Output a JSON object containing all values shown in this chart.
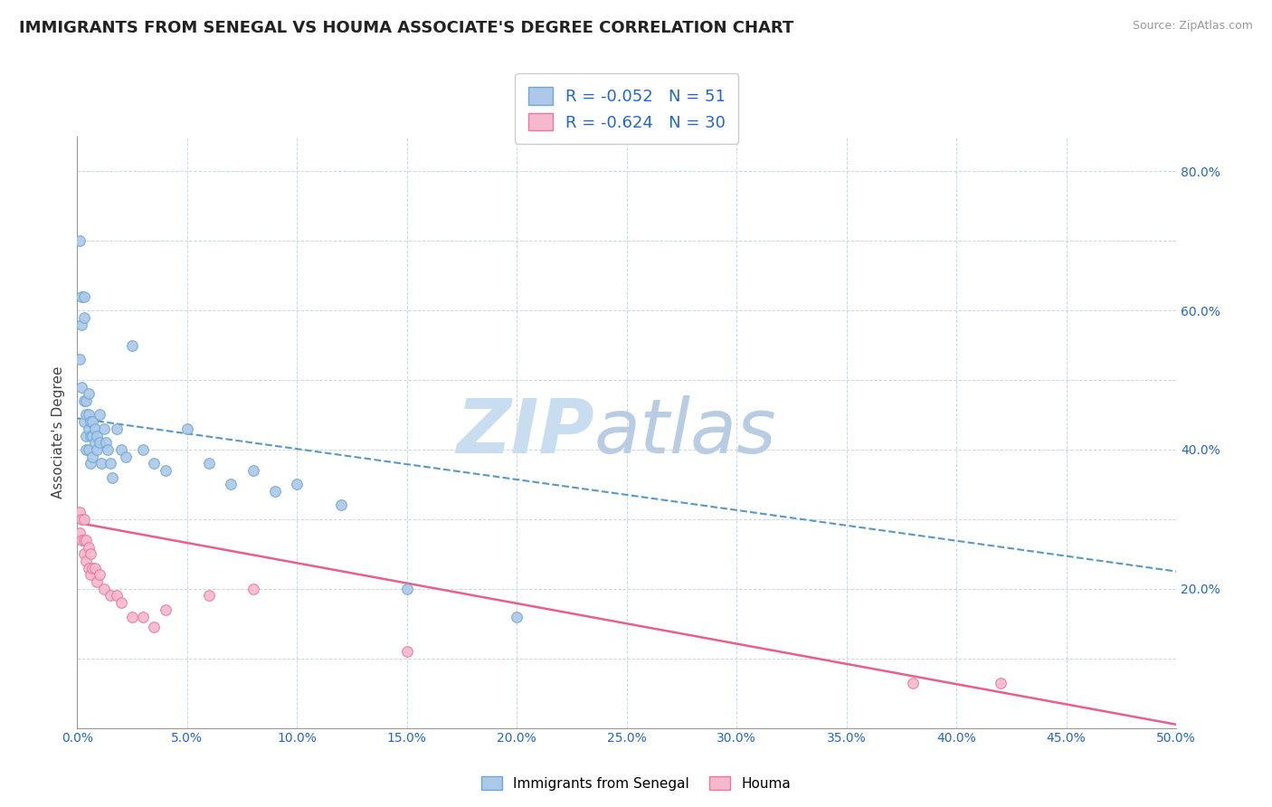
{
  "title": "IMMIGRANTS FROM SENEGAL VS HOUMA ASSOCIATE'S DEGREE CORRELATION CHART",
  "source": "Source: ZipAtlas.com",
  "ylabel": "Associate's Degree",
  "xlim": [
    0.0,
    0.5
  ],
  "ylim": [
    0.0,
    0.85
  ],
  "xtick_vals": [
    0.0,
    0.05,
    0.1,
    0.15,
    0.2,
    0.25,
    0.3,
    0.35,
    0.4,
    0.45,
    0.5
  ],
  "right_ytick_labels": [
    "20.0%",
    "40.0%",
    "60.0%",
    "80.0%"
  ],
  "right_ytick_positions": [
    0.2,
    0.4,
    0.6,
    0.8
  ],
  "blue_scatter_x": [
    0.001,
    0.001,
    0.002,
    0.002,
    0.002,
    0.003,
    0.003,
    0.003,
    0.003,
    0.004,
    0.004,
    0.004,
    0.004,
    0.005,
    0.005,
    0.005,
    0.005,
    0.006,
    0.006,
    0.006,
    0.007,
    0.007,
    0.007,
    0.008,
    0.008,
    0.009,
    0.009,
    0.01,
    0.01,
    0.011,
    0.012,
    0.013,
    0.014,
    0.015,
    0.016,
    0.018,
    0.02,
    0.022,
    0.025,
    0.03,
    0.035,
    0.04,
    0.05,
    0.06,
    0.07,
    0.08,
    0.09,
    0.1,
    0.12,
    0.15,
    0.2
  ],
  "blue_scatter_y": [
    0.7,
    0.53,
    0.62,
    0.58,
    0.49,
    0.62,
    0.59,
    0.47,
    0.44,
    0.47,
    0.45,
    0.42,
    0.4,
    0.48,
    0.45,
    0.43,
    0.4,
    0.44,
    0.42,
    0.38,
    0.44,
    0.42,
    0.39,
    0.43,
    0.41,
    0.42,
    0.4,
    0.45,
    0.41,
    0.38,
    0.43,
    0.41,
    0.4,
    0.38,
    0.36,
    0.43,
    0.4,
    0.39,
    0.55,
    0.4,
    0.38,
    0.37,
    0.43,
    0.38,
    0.35,
    0.37,
    0.34,
    0.35,
    0.32,
    0.2,
    0.16
  ],
  "pink_scatter_x": [
    0.001,
    0.001,
    0.002,
    0.002,
    0.003,
    0.003,
    0.003,
    0.004,
    0.004,
    0.005,
    0.005,
    0.006,
    0.006,
    0.007,
    0.008,
    0.009,
    0.01,
    0.012,
    0.015,
    0.018,
    0.02,
    0.025,
    0.03,
    0.035,
    0.04,
    0.06,
    0.08,
    0.15,
    0.38,
    0.42
  ],
  "pink_scatter_y": [
    0.31,
    0.28,
    0.3,
    0.27,
    0.3,
    0.27,
    0.25,
    0.27,
    0.24,
    0.26,
    0.23,
    0.25,
    0.22,
    0.23,
    0.23,
    0.21,
    0.22,
    0.2,
    0.19,
    0.19,
    0.18,
    0.16,
    0.16,
    0.145,
    0.17,
    0.19,
    0.2,
    0.11,
    0.065,
    0.065
  ],
  "blue_color": "#adc8e8",
  "blue_edge_color": "#6aaad4",
  "blue_line_color": "#5599cc",
  "pink_color": "#f5b8cc",
  "pink_edge_color": "#e878a0",
  "pink_line_color": "#e8608a",
  "blue_R": -0.052,
  "blue_N": 51,
  "pink_R": -0.624,
  "pink_N": 30,
  "legend_color": "#2266cc",
  "axis_tick_color": "#2266cc",
  "background_color": "#ffffff",
  "grid_color": "#c8d8ec",
  "watermark_zip_color": "#c8ddf0",
  "watermark_atlas_color": "#b8cce4"
}
